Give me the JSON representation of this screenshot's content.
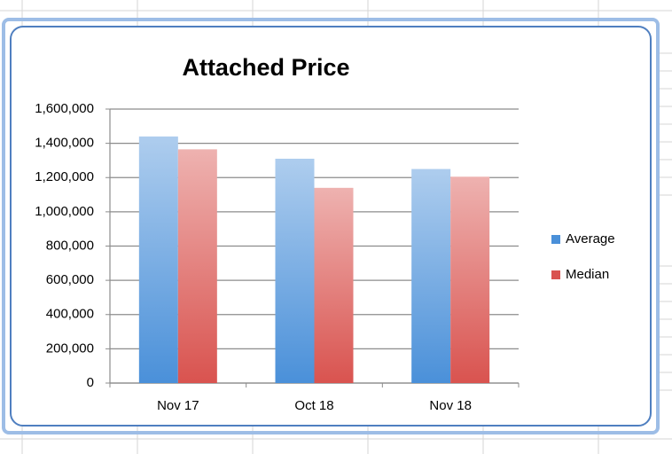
{
  "chart_data": {
    "type": "bar",
    "title": "Attached Price",
    "categories": [
      "Nov 17",
      "Oct 18",
      "Nov 18"
    ],
    "series": [
      {
        "name": "Average",
        "color": "#4a90d9",
        "values": [
          1440000,
          1310000,
          1250000
        ]
      },
      {
        "name": "Median",
        "color": "#d9534f",
        "values": [
          1365000,
          1140000,
          1205000
        ]
      }
    ],
    "ylim": [
      0,
      1600000
    ],
    "yticks": [
      0,
      {
        "value": 200000,
        "label": "200,000"
      },
      {
        "value": 400000,
        "label": "400,000"
      },
      {
        "value": 600000,
        "label": "600,000"
      },
      {
        "value": 800000,
        "label": "800,000"
      },
      {
        "value": 1000000,
        "label": "1,000,000"
      },
      {
        "value": 1200000,
        "label": "1,200,000"
      },
      {
        "value": 1400000,
        "label": "1,400,000"
      },
      {
        "value": 1600000,
        "label": "1,600,000"
      }
    ],
    "grid": true,
    "legend": "right"
  }
}
